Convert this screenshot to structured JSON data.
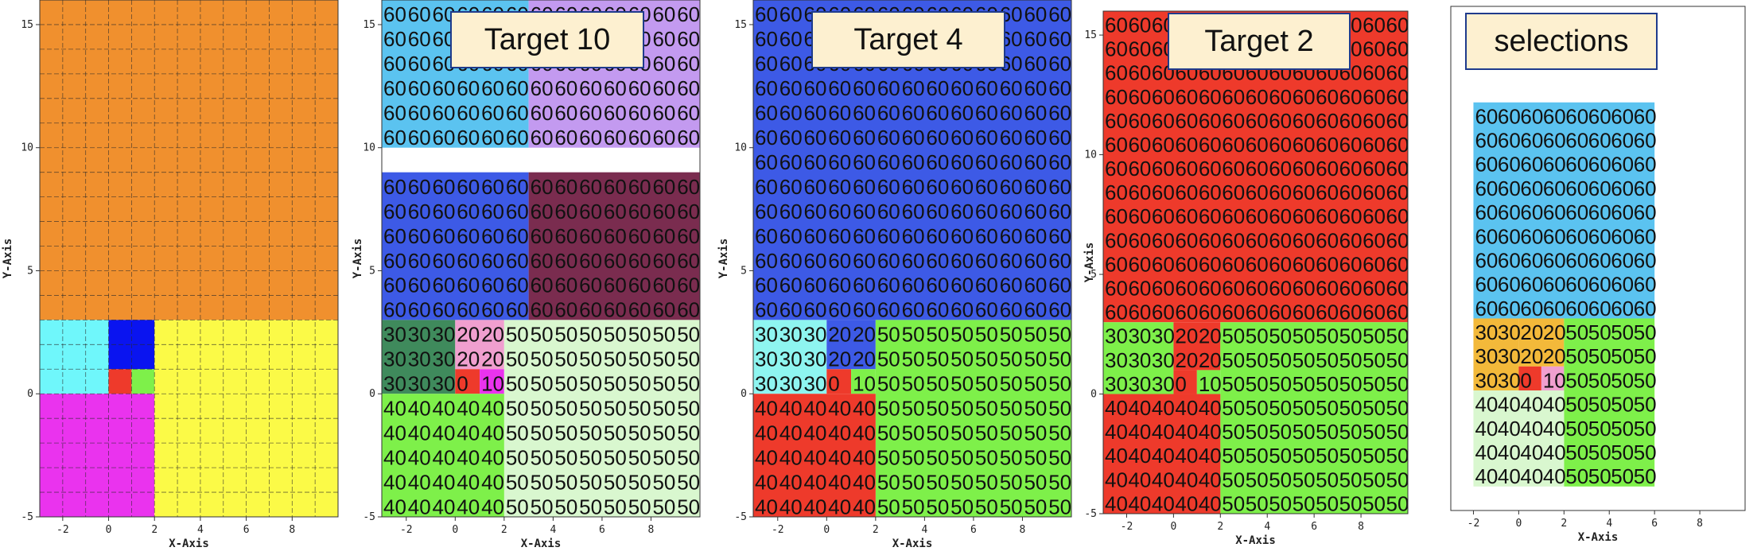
{
  "axes": {
    "xlabel": "X-Axis",
    "ylabel": "Y-Axis",
    "xticks": [
      "-2",
      "0",
      "2",
      "4",
      "6",
      "8"
    ],
    "yticks": [
      "-5",
      "0",
      "5",
      "10",
      "15"
    ]
  },
  "panels": [
    {
      "id": "overview",
      "title": ""
    },
    {
      "id": "target10",
      "title": "Target 10"
    },
    {
      "id": "target4",
      "title": "Target 4"
    },
    {
      "id": "target2",
      "title": "Target 2"
    },
    {
      "id": "selections",
      "title": "selections"
    }
  ],
  "colors": {
    "orange": "#f0902e",
    "cyan": "#6ff7fb",
    "blue": "#0a14f0",
    "red": "#ee3a2b",
    "green": "#7ef04a",
    "magenta": "#ea33ee",
    "yellow": "#fbfa47",
    "sky": "#5bc3f0",
    "lavender": "#c39af0",
    "royal": "#3d5ae6",
    "maroon": "#7a2c4f",
    "teal": "#3f8a5c",
    "lightgreen": "#d9f7cf",
    "pink": "#f09fcf",
    "gold": "#f3b93a",
    "lightcyan": "#8ef5f0"
  },
  "values": {
    "v60": "60",
    "v50": "50",
    "v40": "40",
    "v30": "30",
    "v20": "20",
    "v10": "10",
    "v0": "0"
  },
  "chart_data": [
    {
      "type": "heatmap",
      "title": "",
      "xlabel": "X-Axis",
      "ylabel": "Y-Axis",
      "xlim": [
        -3,
        10
      ],
      "ylim": [
        -5,
        16
      ],
      "regions": [
        {
          "x": [
            -3,
            10
          ],
          "y": [
            3,
            16
          ],
          "color": "orange"
        },
        {
          "x": [
            -3,
            0
          ],
          "y": [
            0,
            3
          ],
          "color": "cyan"
        },
        {
          "x": [
            0,
            2
          ],
          "y": [
            1,
            3
          ],
          "color": "blue"
        },
        {
          "x": [
            0,
            1
          ],
          "y": [
            0,
            1
          ],
          "color": "red"
        },
        {
          "x": [
            1,
            2
          ],
          "y": [
            0,
            1
          ],
          "color": "green"
        },
        {
          "x": [
            -3,
            2
          ],
          "y": [
            -5,
            0
          ],
          "color": "magenta"
        },
        {
          "x": [
            2,
            10
          ],
          "y": [
            -5,
            3
          ],
          "color": "yellow"
        }
      ]
    },
    {
      "type": "heatmap",
      "title": "Target 10",
      "xlabel": "X-Axis",
      "ylabel": "Y-Axis",
      "xlim": [
        -3,
        10
      ],
      "ylim": [
        -5,
        16
      ],
      "regions": [
        {
          "x": [
            -3,
            3
          ],
          "y": [
            10,
            16
          ],
          "color": "sky",
          "value": "60"
        },
        {
          "x": [
            3,
            10
          ],
          "y": [
            10,
            16
          ],
          "color": "lavender",
          "value": "60"
        },
        {
          "x": [
            -3,
            3
          ],
          "y": [
            3,
            9
          ],
          "color": "royal",
          "value": "60"
        },
        {
          "x": [
            3,
            10
          ],
          "y": [
            3,
            9
          ],
          "color": "maroon",
          "value": "60"
        },
        {
          "x": [
            -3,
            0
          ],
          "y": [
            0,
            3
          ],
          "color": "teal",
          "value": "30"
        },
        {
          "x": [
            0,
            2
          ],
          "y": [
            1,
            3
          ],
          "color": "pink",
          "value": "20"
        },
        {
          "x": [
            0,
            1
          ],
          "y": [
            0,
            1
          ],
          "color": "red",
          "value": "0"
        },
        {
          "x": [
            1,
            2
          ],
          "y": [
            0,
            1
          ],
          "color": "magenta",
          "value": "10"
        },
        {
          "x": [
            2,
            10
          ],
          "y": [
            -5,
            3
          ],
          "color": "lightgreen",
          "value": "50"
        },
        {
          "x": [
            -3,
            2
          ],
          "y": [
            -5,
            0
          ],
          "color": "green",
          "value": "40"
        }
      ]
    },
    {
      "type": "heatmap",
      "title": "Target 4",
      "xlabel": "X-Axis",
      "ylabel": "Y-Axis",
      "xlim": [
        -3,
        10
      ],
      "ylim": [
        -5,
        16
      ],
      "regions": [
        {
          "x": [
            -3,
            10
          ],
          "y": [
            3,
            16
          ],
          "color": "royal",
          "value": "60"
        },
        {
          "x": [
            -3,
            0
          ],
          "y": [
            0,
            3
          ],
          "color": "lightcyan",
          "value": "30"
        },
        {
          "x": [
            0,
            2
          ],
          "y": [
            1,
            3
          ],
          "color": "royal",
          "value": "20"
        },
        {
          "x": [
            0,
            1
          ],
          "y": [
            0,
            1
          ],
          "color": "red",
          "value": "0"
        },
        {
          "x": [
            1,
            2
          ],
          "y": [
            0,
            1
          ],
          "color": "green",
          "value": "10"
        },
        {
          "x": [
            2,
            10
          ],
          "y": [
            -5,
            3
          ],
          "color": "green",
          "value": "50"
        },
        {
          "x": [
            -3,
            2
          ],
          "y": [
            -5,
            0
          ],
          "color": "red",
          "value": "40"
        }
      ]
    },
    {
      "type": "heatmap",
      "title": "Target 2",
      "xlabel": "X-Axis",
      "ylabel": "Y-Axis",
      "xlim": [
        -3,
        10
      ],
      "ylim": [
        -5,
        16
      ],
      "regions": [
        {
          "x": [
            -3,
            10
          ],
          "y": [
            3,
            16
          ],
          "color": "red",
          "value": "60"
        },
        {
          "x": [
            -3,
            0
          ],
          "y": [
            0,
            3
          ],
          "color": "green",
          "value": "30"
        },
        {
          "x": [
            0,
            2
          ],
          "y": [
            1,
            3
          ],
          "color": "red",
          "value": "20"
        },
        {
          "x": [
            0,
            1
          ],
          "y": [
            0,
            1
          ],
          "color": "red",
          "value": "0"
        },
        {
          "x": [
            1,
            2
          ],
          "y": [
            0,
            1
          ],
          "color": "green",
          "value": "10"
        },
        {
          "x": [
            2,
            10
          ],
          "y": [
            -5,
            3
          ],
          "color": "green",
          "value": "50"
        },
        {
          "x": [
            -3,
            2
          ],
          "y": [
            -5,
            0
          ],
          "color": "red",
          "value": "40"
        }
      ]
    },
    {
      "type": "heatmap",
      "title": "selections",
      "xlabel": "X-Axis",
      "ylabel": "",
      "xlim": [
        -3,
        10
      ],
      "ylim": [
        -5,
        16
      ],
      "regions": [
        {
          "x": [
            -2,
            6
          ],
          "y": [
            3,
            12
          ],
          "color": "sky",
          "value": "60"
        },
        {
          "x": [
            -2,
            0
          ],
          "y": [
            0,
            3
          ],
          "color": "gold",
          "value": "30"
        },
        {
          "x": [
            0,
            2
          ],
          "y": [
            1,
            3
          ],
          "color": "gold",
          "value": "20"
        },
        {
          "x": [
            0,
            1
          ],
          "y": [
            0,
            1
          ],
          "color": "red",
          "value": "0"
        },
        {
          "x": [
            1,
            2
          ],
          "y": [
            0,
            1
          ],
          "color": "pink",
          "value": "10"
        },
        {
          "x": [
            2,
            6
          ],
          "y": [
            -4,
            3
          ],
          "color": "green",
          "value": "50"
        },
        {
          "x": [
            -2,
            2
          ],
          "y": [
            -4,
            0
          ],
          "color": "lightgreen",
          "value": "40"
        }
      ]
    }
  ]
}
